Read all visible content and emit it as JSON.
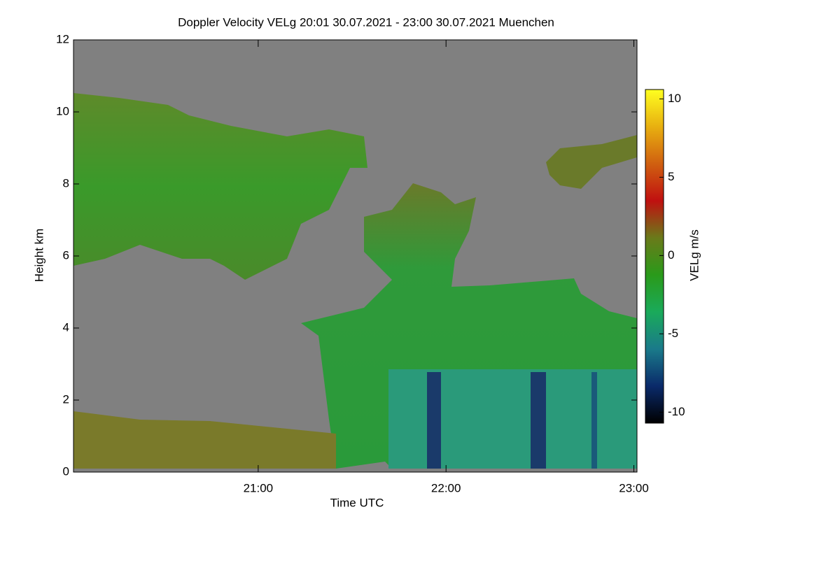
{
  "chart_data": {
    "type": "heatmap",
    "title": "Doppler Velocity VELg   20:01 30.07.2021 - 23:00 30.07.2021 Muenchen",
    "x_label": "Time UTC",
    "y_label": "Height km",
    "xlim": [
      1,
      181
    ],
    "xticks": [
      {
        "value": 60,
        "label": "21:00"
      },
      {
        "value": 120,
        "label": "22:00"
      },
      {
        "value": 180,
        "label": "23:00"
      }
    ],
    "ylim": [
      0,
      12
    ],
    "yticks": [
      0,
      2,
      4,
      6,
      8,
      10,
      12
    ],
    "colorbar_label": "VELg m/s",
    "clim": [
      -10.7,
      10.6
    ],
    "cticks": [
      -10,
      -5,
      0,
      5,
      10
    ],
    "colormap": [
      "#000000",
      "#0a2a6a",
      "#1a7a8a",
      "#1aaa5a",
      "#2a9a1a",
      "#6a7a1a",
      "#c01010",
      "#d06010",
      "#e8b010",
      "#ffff20"
    ],
    "background": "#808080"
  }
}
